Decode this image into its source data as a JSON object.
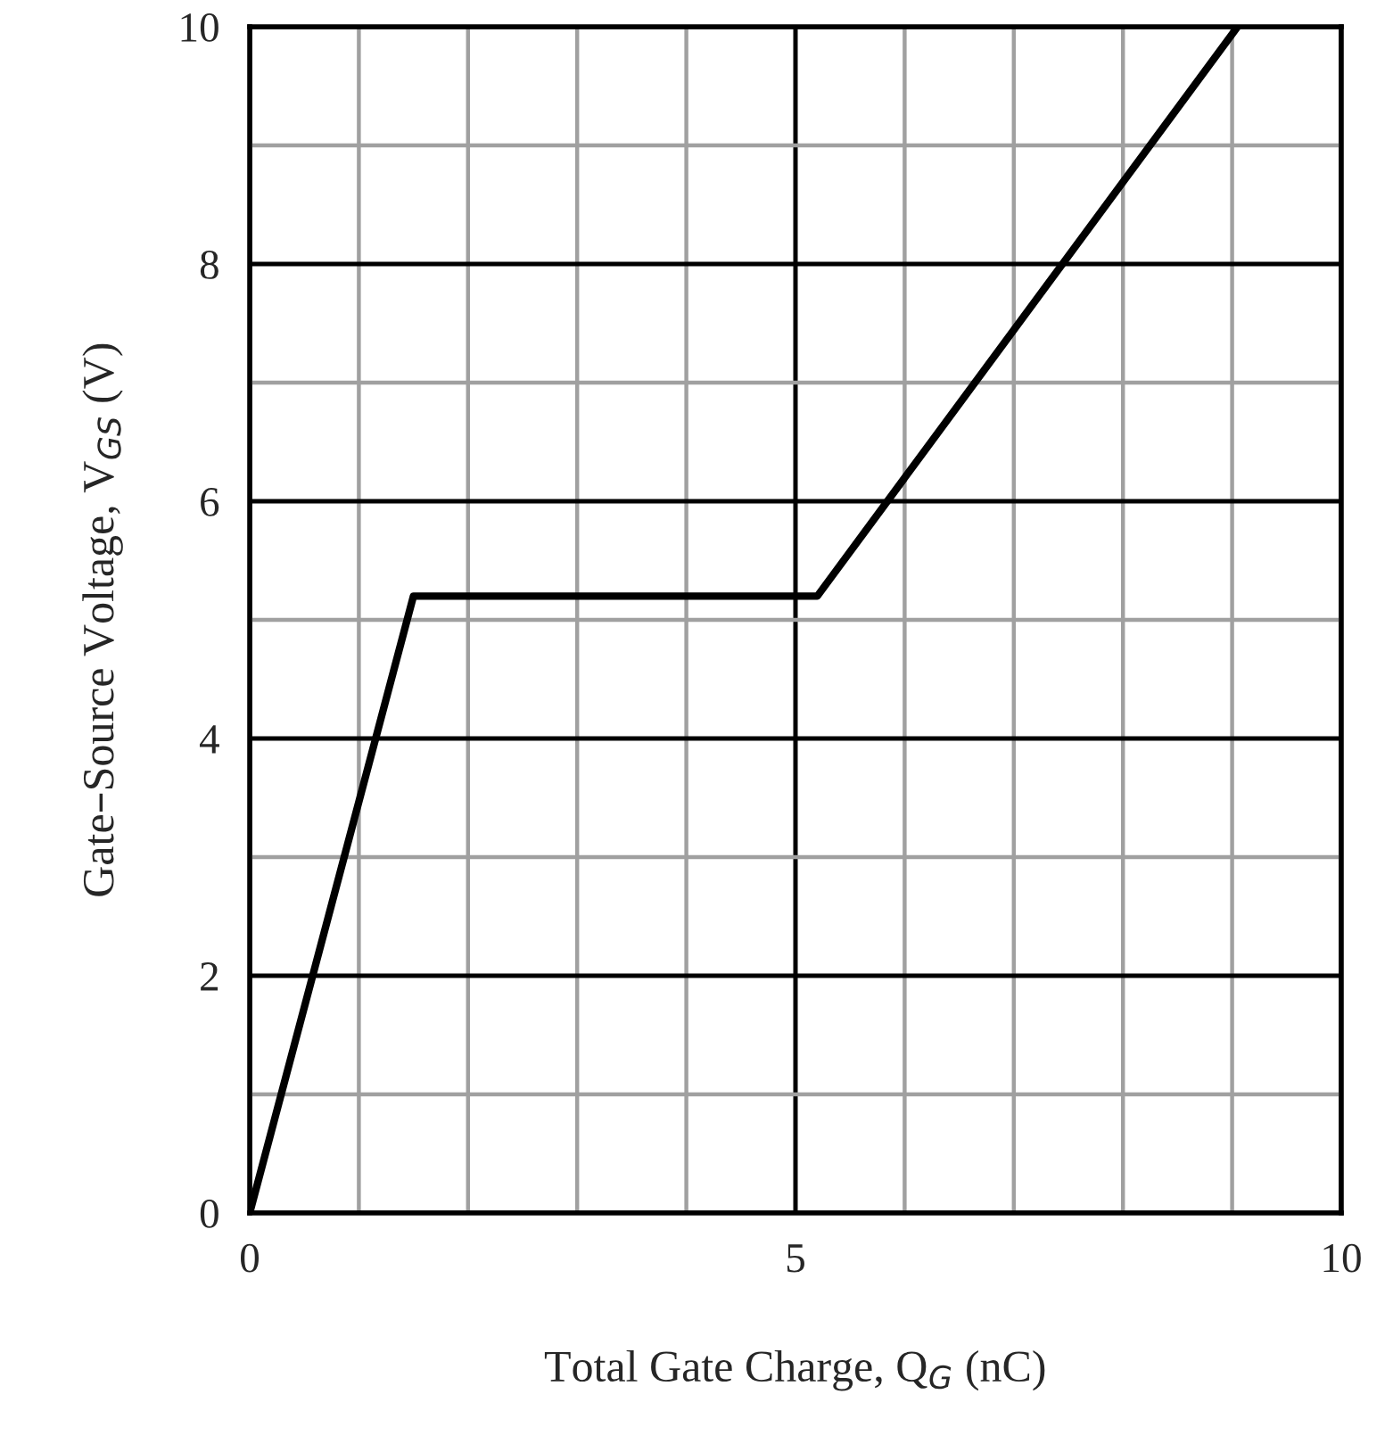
{
  "chart_data": {
    "type": "line",
    "xlabel": "Total Gate Charge, Q$_{G}$ (nC)",
    "ylabel": "Gate–Source Voltage, V$_{GS}$ (V)",
    "series": [
      {
        "color": "#000000",
        "x": [
          0,
          1.5,
          5.2,
          9.05
        ],
        "values": [
          0,
          5.2,
          5.2,
          10
        ]
      }
    ],
    "xlim": [
      0,
      10
    ],
    "ylim": [
      0,
      10
    ],
    "xticks": [
      0,
      {
        "value": 1,
        "label": null
      },
      {
        "value": 2,
        "label": null
      },
      {
        "value": 3,
        "label": null
      },
      {
        "value": 4,
        "label": null
      },
      5,
      {
        "value": 6,
        "label": null
      },
      {
        "value": 7,
        "label": null
      },
      {
        "value": 8,
        "label": null
      },
      {
        "value": 9,
        "label": null
      },
      10
    ],
    "yticks": [
      0,
      {
        "value": 1,
        "label": null
      },
      2,
      {
        "value": 3,
        "label": null
      },
      4,
      {
        "value": 5,
        "label": null
      },
      6,
      {
        "value": 7,
        "label": null
      },
      8,
      {
        "value": 9,
        "label": null
      },
      10
    ],
    "grid": true,
    "line_style": "solid",
    "marker": "none",
    "legend": false
  }
}
